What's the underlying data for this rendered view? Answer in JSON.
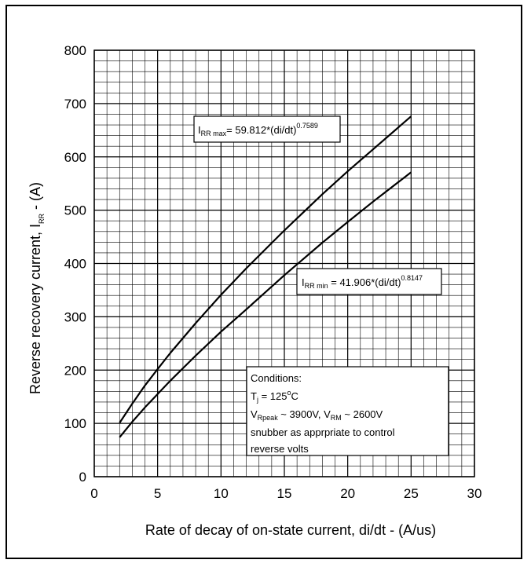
{
  "chart_data": {
    "type": "line",
    "xlabel": "Rate of decay of on-state current, di/dt - (A/us)",
    "ylabel_prefix": "Reverse recovery current, I",
    "ylabel_sub": "RR",
    "ylabel_suffix": " - (A)",
    "xlim": [
      0,
      30
    ],
    "ylim": [
      0,
      800
    ],
    "x_ticks": [
      0,
      5,
      10,
      15,
      20,
      25,
      30
    ],
    "y_ticks": [
      0,
      100,
      200,
      300,
      400,
      500,
      600,
      700,
      800
    ],
    "x_tick_labels": [
      "0",
      "5",
      "10",
      "15",
      "20",
      "25",
      "30"
    ],
    "y_tick_labels": [
      "0",
      "100",
      "200",
      "300",
      "400",
      "500",
      "600",
      "700",
      "800"
    ],
    "grid": true,
    "minor_grid": {
      "x_step": 1,
      "y_step": 20
    },
    "series": [
      {
        "x": [
          2,
          3,
          4,
          5,
          6,
          8,
          10,
          12,
          15,
          18,
          20,
          22,
          25
        ],
        "y": [
          101,
          137,
          171,
          202,
          232,
          288,
          341,
          391,
          462,
          530,
          573,
          614,
          676
        ],
        "color": "#000000"
      },
      {
        "x": [
          2,
          3,
          4,
          5,
          6,
          8,
          10,
          12,
          15,
          18,
          20,
          22,
          25
        ],
        "y": [
          74,
          103,
          130,
          155,
          180,
          227,
          272,
          314,
          378,
          439,
          478,
          516,
          571
        ],
        "color": "#000000"
      }
    ],
    "annotations": {
      "irr_max": {
        "main": "I",
        "sub": "RR max",
        "text": "= 59.812*(di/dt)",
        "sup": "0.7589"
      },
      "irr_min": {
        "main": "I",
        "sub": "RR min",
        "text": " = 41.906*(di/dt)",
        "sup": "0.8147"
      },
      "conditions": {
        "title": "Conditions:",
        "tj_main": "T",
        "tj_sub": "j",
        "tj_text": " = 125",
        "tj_sup": "o",
        "tj_unit": "C",
        "v_main1": "V",
        "v_sub1": "Rpeak",
        "v_text1": " ~ 3900V, V",
        "v_sub2": "RM",
        "v_text2": " ~ 2600V",
        "line4": "snubber as apprpriate to control",
        "line5": "reverse volts"
      }
    }
  }
}
